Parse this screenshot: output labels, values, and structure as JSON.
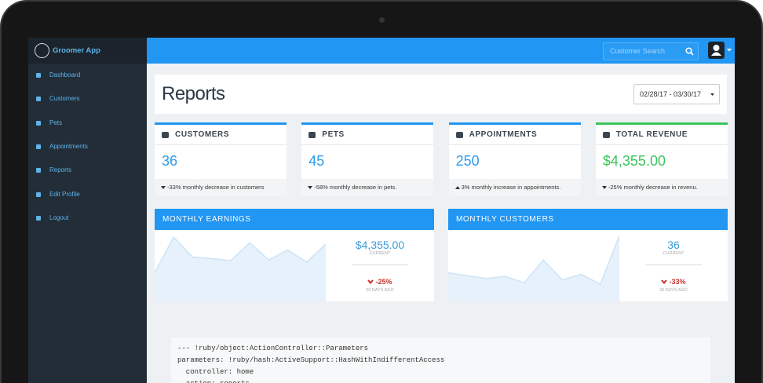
{
  "brand": "Groomer App",
  "nav": [
    "Dashboard",
    "Customers",
    "Pets",
    "Appointments",
    "Reports",
    "Edit Profile",
    "Logout"
  ],
  "search_placeholder": "Customer Search",
  "page_title": "Reports",
  "date_range": "02/28/17 - 03/30/17",
  "stats": [
    {
      "label": "CUSTOMERS",
      "value": "36",
      "note": "-33% monthly decrease in customers",
      "trend": "down",
      "color": "#2196f3"
    },
    {
      "label": "PETS",
      "value": "45",
      "note": "-58% monthly decrease in pets.",
      "trend": "down",
      "color": "#2196f3"
    },
    {
      "label": "APPOINTMENTS",
      "value": "250",
      "note": "3% monthly increase in appointments.",
      "trend": "up",
      "color": "#2196f3"
    },
    {
      "label": "TOTAL REVENUE",
      "value": "$4,355.00",
      "note": "-25% monthly decrease in revenu.",
      "trend": "down",
      "color": "#3cc45c"
    }
  ],
  "charts": [
    {
      "title": "MONTHLY EARNINGS",
      "current": "$4,355.00",
      "current_label": "CURRENT",
      "change": "-25%",
      "change_label": "30 DAYS AGO",
      "values": [
        40,
        90,
        62,
        60,
        57,
        82,
        58,
        72,
        55,
        80
      ],
      "ylim": [
        0,
        100
      ]
    },
    {
      "title": "MONTHLY CUSTOMERS",
      "current": "36",
      "current_label": "CURRENT",
      "change": "-33%",
      "change_label": "30 DAYS AGO",
      "values": [
        40,
        36,
        32,
        35,
        26,
        58,
        30,
        38,
        24,
        92
      ],
      "ylim": [
        0,
        100
      ]
    }
  ],
  "code": [
    "--- !ruby/object:ActionController::Parameters",
    "parameters: !ruby/hash:ActiveSupport::HashWithIndifferentAccess",
    "  controller: home",
    "  action: reports"
  ]
}
